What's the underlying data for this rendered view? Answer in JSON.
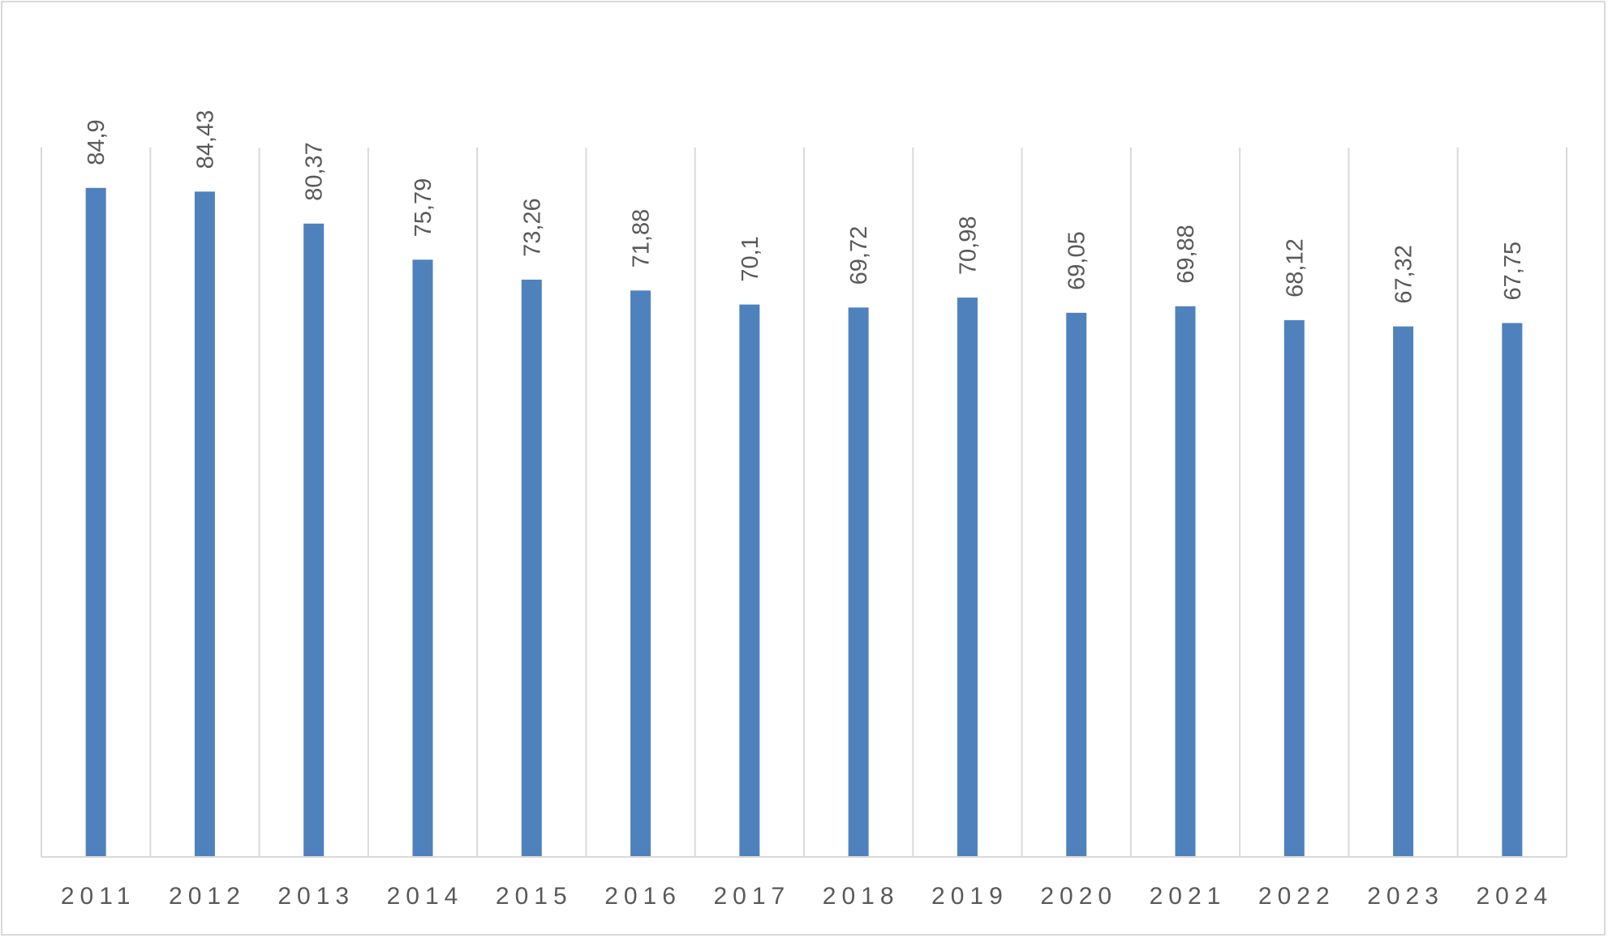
{
  "chart_data": {
    "type": "bar",
    "title": "",
    "xlabel": "",
    "ylabel": "",
    "categories": [
      "2011",
      "2012",
      "2013",
      "2014",
      "2015",
      "2016",
      "2017",
      "2018",
      "2019",
      "2020",
      "2021",
      "2022",
      "2023",
      "2024"
    ],
    "values": [
      84.9,
      84.43,
      80.37,
      75.79,
      73.26,
      71.88,
      70.1,
      69.72,
      70.98,
      69.05,
      69.88,
      68.12,
      67.32,
      67.75
    ],
    "data_labels": [
      "84,9",
      "84,43",
      "80,37",
      "75,79",
      "73,26",
      "71,88",
      "70,1",
      "69,72",
      "70,98",
      "69,05",
      "69,88",
      "68,12",
      "67,32",
      "67,75"
    ],
    "ylim": [
      0,
      90
    ],
    "grid": "vertical category separators",
    "legend": "none",
    "colors": {
      "bar": "#4f81bd",
      "grid": "#d9d9d9",
      "text": "#595959"
    }
  }
}
